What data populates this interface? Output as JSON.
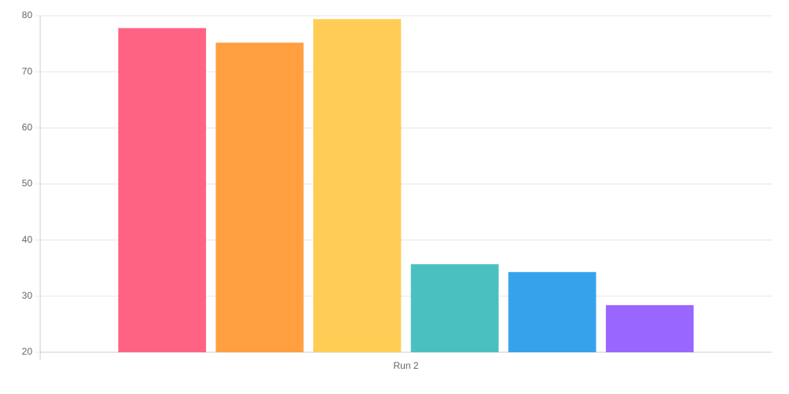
{
  "chart_data": {
    "type": "bar",
    "categories": [
      "Run 2"
    ],
    "series": [
      {
        "color": "#ff6384",
        "values": [
          77.8
        ]
      },
      {
        "color": "#ff9f40",
        "values": [
          75.2
        ]
      },
      {
        "color": "#ffcd56",
        "values": [
          79.4
        ]
      },
      {
        "color": "#4bc0c0",
        "values": [
          35.7
        ]
      },
      {
        "color": "#36a2eb",
        "values": [
          34.3
        ]
      },
      {
        "color": "#9966ff",
        "values": [
          28.4
        ]
      }
    ],
    "ylim": [
      20,
      80
    ],
    "yticks": [
      20,
      30,
      40,
      50,
      60,
      70,
      80
    ],
    "grid": true
  }
}
